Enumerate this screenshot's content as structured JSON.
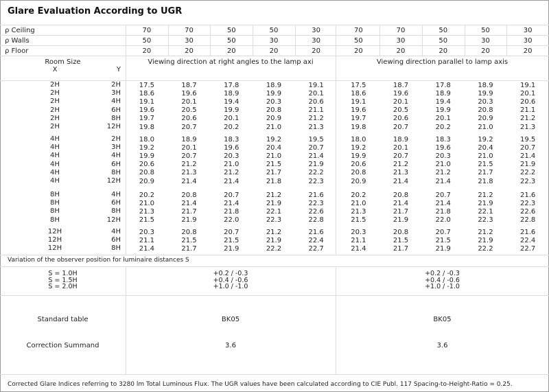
{
  "title": "Glare Evaluation According to UGR",
  "reflectance": [
    {
      "label": "ρ Ceiling",
      "values": [
        "70",
        "70",
        "50",
        "50",
        "30",
        "70",
        "70",
        "50",
        "50",
        "30"
      ]
    },
    {
      "label": "ρ Walls",
      "values": [
        "50",
        "30",
        "50",
        "30",
        "30",
        "50",
        "30",
        "50",
        "30",
        "30"
      ]
    },
    {
      "label": "ρ Floor",
      "values": [
        "20",
        "20",
        "20",
        "20",
        "20",
        "20",
        "20",
        "20",
        "20",
        "20"
      ]
    }
  ],
  "room_size": {
    "label": "Room Size",
    "x": "X",
    "y": "Y"
  },
  "view_right_angles": "Viewing direction at right angles to the lamp axi",
  "view_parallel": "Viewing direction parallel to lamp axis",
  "groups": [
    [
      {
        "x": "2H",
        "y": "2H",
        "v": [
          "17.5",
          "18.7",
          "17.8",
          "18.9",
          "19.1",
          "17.5",
          "18.7",
          "17.8",
          "18.9",
          "19.1"
        ]
      },
      {
        "x": "2H",
        "y": "3H",
        "v": [
          "18.6",
          "19.6",
          "18.9",
          "19.9",
          "20.1",
          "18.6",
          "19.6",
          "18.9",
          "19.9",
          "20.1"
        ]
      },
      {
        "x": "2H",
        "y": "4H",
        "v": [
          "19.1",
          "20.1",
          "19.4",
          "20.3",
          "20.6",
          "19.1",
          "20.1",
          "19.4",
          "20.3",
          "20.6"
        ]
      },
      {
        "x": "2H",
        "y": "6H",
        "v": [
          "19.6",
          "20.5",
          "19.9",
          "20.8",
          "21.1",
          "19.6",
          "20.5",
          "19.9",
          "20.8",
          "21.1"
        ]
      },
      {
        "x": "2H",
        "y": "8H",
        "v": [
          "19.7",
          "20.6",
          "20.1",
          "20.9",
          "21.2",
          "19.7",
          "20.6",
          "20.1",
          "20.9",
          "21.2"
        ]
      },
      {
        "x": "2H",
        "y": "12H",
        "v": [
          "19.8",
          "20.7",
          "20.2",
          "21.0",
          "21.3",
          "19.8",
          "20.7",
          "20.2",
          "21.0",
          "21.3"
        ]
      }
    ],
    [
      {
        "x": "4H",
        "y": "2H",
        "v": [
          "18.0",
          "18.9",
          "18.3",
          "19.2",
          "19.5",
          "18.0",
          "18.9",
          "18.3",
          "19.2",
          "19.5"
        ]
      },
      {
        "x": "4H",
        "y": "3H",
        "v": [
          "19.2",
          "20.1",
          "19.6",
          "20.4",
          "20.7",
          "19.2",
          "20.1",
          "19.6",
          "20.4",
          "20.7"
        ]
      },
      {
        "x": "4H",
        "y": "4H",
        "v": [
          "19.9",
          "20.7",
          "20.3",
          "21.0",
          "21.4",
          "19.9",
          "20.7",
          "20.3",
          "21.0",
          "21.4"
        ]
      },
      {
        "x": "4H",
        "y": "6H",
        "v": [
          "20.6",
          "21.2",
          "21.0",
          "21.5",
          "21.9",
          "20.6",
          "21.2",
          "21.0",
          "21.5",
          "21.9"
        ]
      },
      {
        "x": "4H",
        "y": "8H",
        "v": [
          "20.8",
          "21.3",
          "21.2",
          "21.7",
          "22.2",
          "20.8",
          "21.3",
          "21.2",
          "21.7",
          "22.2"
        ]
      },
      {
        "x": "4H",
        "y": "12H",
        "v": [
          "20.9",
          "21.4",
          "21.4",
          "21.8",
          "22.3",
          "20.9",
          "21.4",
          "21.4",
          "21.8",
          "22.3"
        ]
      }
    ],
    [
      {
        "x": "8H",
        "y": "4H",
        "v": [
          "20.2",
          "20.8",
          "20.7",
          "21.2",
          "21.6",
          "20.2",
          "20.8",
          "20.7",
          "21.2",
          "21.6"
        ]
      },
      {
        "x": "8H",
        "y": "6H",
        "v": [
          "21.0",
          "21.4",
          "21.4",
          "21.9",
          "22.3",
          "21.0",
          "21.4",
          "21.4",
          "21.9",
          "22.3"
        ]
      },
      {
        "x": "8H",
        "y": "8H",
        "v": [
          "21.3",
          "21.7",
          "21.8",
          "22.1",
          "22.6",
          "21.3",
          "21.7",
          "21.8",
          "22.1",
          "22.6"
        ]
      },
      {
        "x": "8H",
        "y": "12H",
        "v": [
          "21.5",
          "21.9",
          "22.0",
          "22.3",
          "22.8",
          "21.5",
          "21.9",
          "22.0",
          "22.3",
          "22.8"
        ]
      }
    ],
    [
      {
        "x": "12H",
        "y": "4H",
        "v": [
          "20.3",
          "20.8",
          "20.7",
          "21.2",
          "21.6",
          "20.3",
          "20.8",
          "20.7",
          "21.2",
          "21.6"
        ]
      },
      {
        "x": "12H",
        "y": "6H",
        "v": [
          "21.1",
          "21.5",
          "21.5",
          "21.9",
          "22.4",
          "21.1",
          "21.5",
          "21.5",
          "21.9",
          "22.4"
        ]
      },
      {
        "x": "12H",
        "y": "8H",
        "v": [
          "21.4",
          "21.7",
          "21.9",
          "22.2",
          "22.7",
          "21.4",
          "21.7",
          "21.9",
          "22.2",
          "22.7"
        ]
      }
    ]
  ],
  "variation": {
    "label": "Variation of the observer position for luminaire distances S",
    "rows": [
      {
        "s": "S = 1.0H",
        "right": "+0.2 / -0.3",
        "parallel": "+0.2 / -0.3"
      },
      {
        "s": "S = 1.5H",
        "right": "+0.4 / -0.6",
        "parallel": "+0.4 / -0.6"
      },
      {
        "s": "S = 2.0H",
        "right": "+1.0 / -1.0",
        "parallel": "+1.0 / -1.0"
      }
    ]
  },
  "standard_table": {
    "label": "Standard table",
    "right": "BK05",
    "parallel": "BK05"
  },
  "correction": {
    "label": "Correction Summand",
    "right": "3.6",
    "parallel": "3.6"
  },
  "footer": "Corrected Glare Indices referring to 3280 lm Total Luminous Flux. The UGR values have been calculated according to CIE Publ. 117    Spacing-to-Height-Ratio = 0.25."
}
